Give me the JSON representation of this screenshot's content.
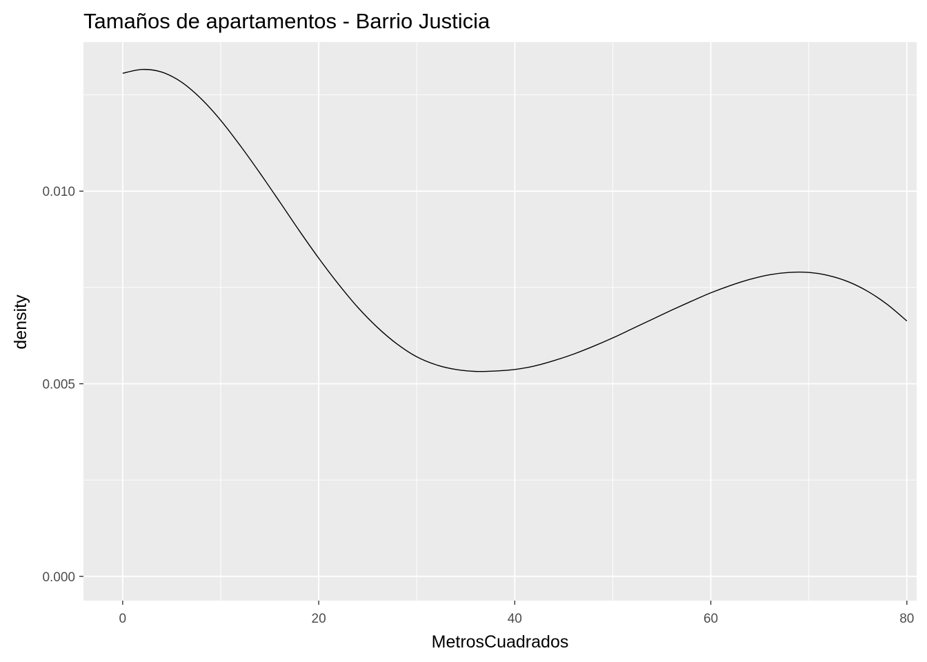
{
  "chart_data": {
    "type": "line",
    "title": "Tamaños de apartamentos - Barrio Justicia",
    "xlabel": "MetrosCuadrados",
    "ylabel": "density",
    "xlim": [
      -4,
      81
    ],
    "ylim": [
      -0.00063,
      0.01387
    ],
    "x_ticks": [
      0,
      20,
      40,
      60,
      80
    ],
    "x_tick_labels": [
      "0",
      "20",
      "40",
      "60",
      "80"
    ],
    "y_ticks": [
      0.0,
      0.005,
      0.01
    ],
    "y_tick_labels": [
      "0.000",
      "0.005",
      "0.010"
    ],
    "grid": true,
    "background_color": "#ebebeb",
    "grid_color": "#ffffff",
    "line_color": "#000000",
    "series": [
      {
        "x": [
          0,
          2,
          4,
          6,
          8,
          10,
          12,
          14,
          16,
          18,
          20,
          22,
          24,
          26,
          28,
          30,
          32,
          34,
          36,
          38,
          40,
          42,
          44,
          46,
          48,
          50,
          52,
          54,
          56,
          58,
          60,
          62,
          64,
          66,
          68,
          70,
          72,
          74,
          76,
          78,
          80
        ],
        "y": [
          0.01306,
          0.01316,
          0.01309,
          0.01283,
          0.0124,
          0.01184,
          0.01118,
          0.01047,
          0.00973,
          0.00898,
          0.00826,
          0.00759,
          0.00698,
          0.00646,
          0.00603,
          0.0057,
          0.00549,
          0.00537,
          0.00532,
          0.00533,
          0.00537,
          0.00546,
          0.0056,
          0.00577,
          0.00597,
          0.00619,
          0.00643,
          0.00667,
          0.00691,
          0.00714,
          0.00736,
          0.00755,
          0.00771,
          0.00783,
          0.00789,
          0.00789,
          0.00781,
          0.00765,
          0.0074,
          0.00706,
          0.00663
        ]
      }
    ]
  }
}
